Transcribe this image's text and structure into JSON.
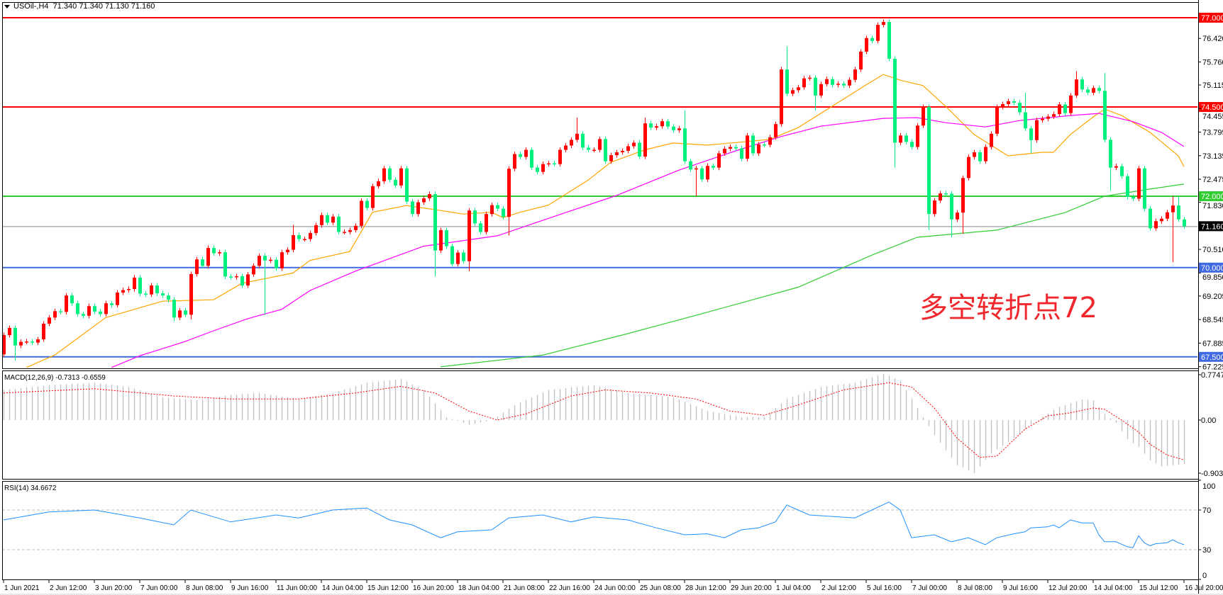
{
  "header": {
    "symbol": "USOil-,H4",
    "ohlc": "71.340 71.340 71.130 71.160"
  },
  "annotation": "多空转折点72",
  "price_axis": {
    "ticks": [
      "76.420",
      "75.760",
      "75.115",
      "74.455",
      "73.795",
      "73.135",
      "72.475",
      "71.830",
      "70.510",
      "69.850",
      "69.205",
      "68.545",
      "67.885",
      "67.225"
    ],
    "level_labels": [
      {
        "text": "77.000",
        "bg": "#ff0000",
        "fg": "#ffffff"
      },
      {
        "text": "74.500",
        "bg": "#ff0000",
        "fg": "#ffffff"
      },
      {
        "text": "72.000",
        "bg": "#32cd32",
        "fg": "#ffffff"
      },
      {
        "text": "71.160",
        "bg": "#000000",
        "fg": "#ffffff"
      },
      {
        "text": "70.000",
        "bg": "#4169e1",
        "fg": "#ffffff"
      },
      {
        "text": "67.500",
        "bg": "#4169e1",
        "fg": "#ffffff"
      }
    ]
  },
  "time_axis": [
    "1 Jun 2021",
    "2 Jun 12:00",
    "3 Jun 20:00",
    "7 Jun 00:00",
    "8 Jun 08:00",
    "9 Jun 16:00",
    "11 Jun 00:00",
    "14 Jun 04:00",
    "15 Jun 12:00",
    "16 Jun 20:00",
    "18 Jun 04:00",
    "21 Jun 08:00",
    "22 Jun 16:00",
    "24 Jun 00:00",
    "25 Jun 08:00",
    "28 Jun 12:00",
    "29 Jun 20:00",
    "1 Jul 04:00",
    "2 Jul 12:00",
    "5 Jul 16:00",
    "7 Jul 00:00",
    "8 Jul 08:00",
    "9 Jul 16:00",
    "12 Jul 20:00",
    "14 Jul 04:00",
    "15 Jul 12:00",
    "16 Jul 20:00"
  ],
  "macd": {
    "label": "MACD(12,26,9) -0.7313 -0.6559",
    "axis": [
      "0.7747",
      "0.00",
      "-0.9034"
    ],
    "main_color": "#c0c0c0",
    "signal_color": "#ff0000",
    "main": [
      [
        0,
        0.5
      ],
      [
        8,
        0.58
      ],
      [
        16,
        0.62
      ],
      [
        22,
        0.55
      ],
      [
        28,
        0.38
      ],
      [
        34,
        0.33
      ],
      [
        40,
        0.42
      ],
      [
        45,
        0.45
      ],
      [
        52,
        0.35
      ],
      [
        58,
        0.45
      ],
      [
        64,
        0.62
      ],
      [
        70,
        0.68
      ],
      [
        74,
        0.5
      ],
      [
        78,
        0.05
      ],
      [
        82,
        -0.08
      ],
      [
        86,
        0.0
      ],
      [
        90,
        0.25
      ],
      [
        96,
        0.5
      ],
      [
        104,
        0.58
      ],
      [
        110,
        0.45
      ],
      [
        118,
        0.38
      ],
      [
        124,
        0.15
      ],
      [
        130,
        0.05
      ],
      [
        134,
        0.05
      ],
      [
        138,
        0.35
      ],
      [
        144,
        0.55
      ],
      [
        150,
        0.62
      ],
      [
        155,
        0.77
      ],
      [
        158,
        0.65
      ],
      [
        161,
        0.2
      ],
      [
        164,
        -0.25
      ],
      [
        168,
        -0.75
      ],
      [
        171,
        -0.88
      ],
      [
        174,
        -0.55
      ],
      [
        178,
        -0.3
      ],
      [
        182,
        0.0
      ],
      [
        186,
        0.22
      ],
      [
        190,
        0.34
      ],
      [
        192,
        0.33
      ],
      [
        194,
        0.1
      ],
      [
        196,
        -0.05
      ],
      [
        198,
        -0.32
      ],
      [
        200,
        -0.45
      ],
      [
        202,
        -0.67
      ],
      [
        204,
        -0.77
      ],
      [
        208,
        -0.73
      ]
    ],
    "signal": [
      [
        0,
        0.45
      ],
      [
        16,
        0.52
      ],
      [
        30,
        0.4
      ],
      [
        40,
        0.35
      ],
      [
        52,
        0.35
      ],
      [
        62,
        0.45
      ],
      [
        70,
        0.56
      ],
      [
        76,
        0.45
      ],
      [
        82,
        0.15
      ],
      [
        87,
        0.0
      ],
      [
        92,
        0.1
      ],
      [
        100,
        0.4
      ],
      [
        106,
        0.5
      ],
      [
        114,
        0.45
      ],
      [
        122,
        0.35
      ],
      [
        128,
        0.15
      ],
      [
        134,
        0.08
      ],
      [
        140,
        0.25
      ],
      [
        148,
        0.5
      ],
      [
        156,
        0.62
      ],
      [
        160,
        0.55
      ],
      [
        164,
        0.2
      ],
      [
        168,
        -0.3
      ],
      [
        172,
        -0.62
      ],
      [
        175,
        -0.6
      ],
      [
        180,
        -0.15
      ],
      [
        184,
        0.07
      ],
      [
        188,
        0.12
      ],
      [
        192,
        0.2
      ],
      [
        194,
        0.18
      ],
      [
        197,
        0.0
      ],
      [
        200,
        -0.2
      ],
      [
        202,
        -0.4
      ],
      [
        205,
        -0.58
      ],
      [
        208,
        -0.66
      ]
    ]
  },
  "rsi": {
    "label": "RSI(14) 34.6672",
    "axis": [
      "100",
      "70",
      "30",
      "0"
    ],
    "levels": [
      70,
      30
    ],
    "color": "#1e90ff",
    "values": [
      [
        0,
        60
      ],
      [
        8,
        68
      ],
      [
        16,
        70
      ],
      [
        24,
        62
      ],
      [
        30,
        55
      ],
      [
        33,
        70
      ],
      [
        40,
        58
      ],
      [
        48,
        65
      ],
      [
        52,
        62
      ],
      [
        58,
        70
      ],
      [
        64,
        72
      ],
      [
        68,
        60
      ],
      [
        72,
        55
      ],
      [
        77,
        42
      ],
      [
        80,
        48
      ],
      [
        86,
        50
      ],
      [
        89,
        62
      ],
      [
        95,
        65
      ],
      [
        100,
        58
      ],
      [
        104,
        63
      ],
      [
        110,
        60
      ],
      [
        115,
        52
      ],
      [
        120,
        45
      ],
      [
        124,
        46
      ],
      [
        127,
        42
      ],
      [
        130,
        50
      ],
      [
        133,
        52
      ],
      [
        136,
        58
      ],
      [
        138,
        75
      ],
      [
        142,
        65
      ],
      [
        150,
        62
      ],
      [
        156,
        78
      ],
      [
        158,
        70
      ],
      [
        160,
        42
      ],
      [
        164,
        45
      ],
      [
        167,
        38
      ],
      [
        170,
        42
      ],
      [
        173,
        35
      ],
      [
        175,
        42
      ],
      [
        178,
        46
      ],
      [
        180,
        48
      ],
      [
        181,
        52
      ],
      [
        184,
        53
      ],
      [
        185,
        55
      ],
      [
        186,
        52
      ],
      [
        188,
        60
      ],
      [
        190,
        57
      ],
      [
        192,
        57
      ],
      [
        193,
        45
      ],
      [
        194,
        38
      ],
      [
        196,
        38
      ],
      [
        198,
        33
      ],
      [
        199,
        32
      ],
      [
        200,
        44
      ],
      [
        201,
        37
      ],
      [
        202,
        34
      ],
      [
        203,
        36
      ],
      [
        205,
        37
      ],
      [
        206,
        40
      ],
      [
        207,
        37
      ],
      [
        208,
        35
      ]
    ]
  },
  "chart_data": {
    "type": "candlestick",
    "symbol": "USOil-",
    "timeframe": "H4",
    "ylim": [
      67.225,
      77.44
    ],
    "up_color": "#ff0000",
    "down_color": "#00f080",
    "first_open": 67.57,
    "close": [
      68.11,
      68.31,
      67.82,
      67.92,
      67.93,
      67.9,
      67.99,
      68.43,
      68.6,
      68.78,
      68.76,
      69.22,
      69.0,
      68.7,
      68.65,
      68.92,
      68.77,
      68.7,
      69.0,
      68.95,
      69.3,
      69.37,
      69.4,
      69.72,
      69.27,
      69.25,
      69.5,
      69.28,
      69.22,
      69.1,
      68.6,
      68.8,
      68.68,
      69.82,
      70.23,
      70.05,
      70.55,
      70.4,
      70.43,
      69.75,
      69.73,
      69.76,
      69.5,
      69.81,
      70.05,
      70.33,
      70.2,
      70.22,
      69.98,
      70.43,
      70.5,
      70.91,
      70.8,
      70.8,
      70.97,
      71.19,
      71.47,
      71.26,
      71.43,
      71.0,
      71.0,
      71.05,
      71.17,
      71.87,
      71.67,
      72.28,
      72.42,
      72.78,
      72.46,
      72.3,
      72.78,
      71.85,
      71.5,
      71.83,
      71.94,
      72.06,
      70.48,
      71.05,
      70.6,
      70.1,
      70.42,
      70.18,
      71.6,
      71.24,
      71.0,
      71.5,
      71.75,
      71.65,
      71.42,
      72.77,
      73.18,
      73.1,
      73.3,
      72.8,
      72.68,
      72.9,
      72.92,
      72.9,
      73.3,
      73.42,
      73.58,
      73.75,
      73.36,
      73.3,
      73.3,
      73.6,
      72.98,
      73.15,
      73.23,
      73.27,
      73.4,
      73.5,
      73.11,
      74.04,
      73.92,
      73.96,
      74.1,
      73.95,
      73.85,
      73.9,
      72.98,
      72.75,
      72.78,
      72.47,
      72.85,
      72.8,
      73.2,
      73.33,
      73.38,
      73.34,
      73.05,
      73.7,
      73.2,
      73.45,
      73.44,
      73.65,
      74.02,
      75.55,
      74.87,
      74.97,
      75.05,
      75.3,
      75.32,
      74.82,
      75.14,
      75.28,
      75.12,
      75.15,
      75.1,
      75.26,
      75.55,
      76.05,
      76.43,
      76.35,
      76.8,
      76.88,
      75.85,
      73.5,
      73.7,
      73.52,
      73.38,
      73.98,
      74.5,
      71.5,
      71.88,
      72.08,
      72.07,
      71.35,
      71.54,
      72.51,
      73.1,
      73.23,
      72.98,
      73.38,
      73.75,
      74.5,
      74.58,
      74.66,
      74.62,
      74.35,
      73.9,
      73.57,
      74.13,
      74.17,
      74.23,
      74.3,
      74.57,
      74.33,
      74.82,
      75.27,
      74.99,
      74.9,
      75.03,
      74.95,
      73.58,
      72.8,
      72.84,
      72.56,
      71.98,
      71.93,
      72.78,
      71.65,
      71.1,
      71.3,
      71.37,
      71.55,
      71.74,
      71.35,
      71.16
    ],
    "notable_wicks": [
      {
        "bar": 2,
        "low": 67.4
      },
      {
        "bar": 30,
        "low": 68.5
      },
      {
        "bar": 33,
        "low": 68.55
      },
      {
        "bar": 46,
        "low": 68.67
      },
      {
        "bar": 51,
        "high": 71.2
      },
      {
        "bar": 76,
        "low": 69.75
      },
      {
        "bar": 82,
        "low": 69.9
      },
      {
        "bar": 89,
        "low": 70.9
      },
      {
        "bar": 101,
        "high": 74.2
      },
      {
        "bar": 113,
        "high": 74.2
      },
      {
        "bar": 120,
        "high": 74.4
      },
      {
        "bar": 122,
        "low": 72.0
      },
      {
        "bar": 138,
        "high": 76.2
      },
      {
        "bar": 143,
        "low": 74.4
      },
      {
        "bar": 157,
        "low": 72.8
      },
      {
        "bar": 163,
        "low": 71.05
      },
      {
        "bar": 167,
        "low": 70.85
      },
      {
        "bar": 169,
        "low": 70.95
      },
      {
        "bar": 180,
        "high": 74.9
      },
      {
        "bar": 181,
        "low": 73.2
      },
      {
        "bar": 189,
        "high": 75.5
      },
      {
        "bar": 194,
        "high": 75.45
      },
      {
        "bar": 195,
        "low": 72.15
      },
      {
        "bar": 206,
        "low": 70.15,
        "high": 72.0
      },
      {
        "bar": 207,
        "high": 72.0
      }
    ],
    "moving_averages": [
      {
        "color": "#ffa500",
        "points": [
          [
            4,
            67.2
          ],
          [
            9,
            67.55
          ],
          [
            18,
            68.6
          ],
          [
            28,
            69.06
          ],
          [
            37,
            69.1
          ],
          [
            42,
            69.56
          ],
          [
            51,
            69.85
          ],
          [
            54,
            70.2
          ],
          [
            61,
            70.45
          ],
          [
            65,
            71.55
          ],
          [
            71,
            71.74
          ],
          [
            77,
            71.6
          ],
          [
            81,
            71.5
          ],
          [
            86,
            71.55
          ],
          [
            88,
            71.4
          ],
          [
            91,
            71.55
          ],
          [
            96,
            71.75
          ],
          [
            99,
            72.05
          ],
          [
            103,
            72.45
          ],
          [
            107,
            72.95
          ],
          [
            113,
            73.3
          ],
          [
            118,
            73.49
          ],
          [
            124,
            73.43
          ],
          [
            135,
            73.59
          ],
          [
            140,
            73.92
          ],
          [
            146,
            74.52
          ],
          [
            152,
            75.12
          ],
          [
            155,
            75.41
          ],
          [
            158,
            75.25
          ],
          [
            162,
            75.1
          ],
          [
            166,
            74.52
          ],
          [
            171,
            73.73
          ],
          [
            177,
            73.13
          ],
          [
            183,
            73.23
          ],
          [
            185,
            73.23
          ],
          [
            188,
            73.73
          ],
          [
            192,
            74.22
          ],
          [
            194,
            74.44
          ],
          [
            197,
            74.26
          ],
          [
            202,
            73.79
          ],
          [
            207,
            73.13
          ],
          [
            208,
            72.83
          ]
        ]
      },
      {
        "color": "#ff00ff",
        "points": [
          [
            19,
            67.2
          ],
          [
            24,
            67.53
          ],
          [
            32,
            67.93
          ],
          [
            37,
            68.23
          ],
          [
            43,
            68.57
          ],
          [
            49,
            68.83
          ],
          [
            54,
            69.36
          ],
          [
            62,
            69.9
          ],
          [
            74,
            70.6
          ],
          [
            87,
            70.89
          ],
          [
            99,
            71.54
          ],
          [
            108,
            72.02
          ],
          [
            119,
            72.73
          ],
          [
            129,
            73.27
          ],
          [
            137,
            73.67
          ],
          [
            144,
            73.96
          ],
          [
            155,
            74.18
          ],
          [
            161,
            74.2
          ],
          [
            166,
            74.06
          ],
          [
            173,
            73.94
          ],
          [
            179,
            74.12
          ],
          [
            188,
            74.26
          ],
          [
            193,
            74.32
          ],
          [
            199,
            74.09
          ],
          [
            204,
            73.79
          ],
          [
            208,
            73.39
          ]
        ]
      },
      {
        "color": "#32cd32",
        "points": [
          [
            77,
            67.22
          ],
          [
            95,
            67.55
          ],
          [
            110,
            68.15
          ],
          [
            124,
            68.75
          ],
          [
            140,
            69.45
          ],
          [
            153,
            70.35
          ],
          [
            161,
            70.85
          ],
          [
            175,
            71.05
          ],
          [
            187,
            71.54
          ],
          [
            194,
            72.0
          ],
          [
            202,
            72.2
          ],
          [
            208,
            72.34
          ]
        ]
      }
    ],
    "levels": [
      {
        "price": 77.0,
        "color": "#ff0000"
      },
      {
        "price": 74.5,
        "color": "#ff0000"
      },
      {
        "price": 72.0,
        "color": "#32cd32"
      },
      {
        "price": 70.0,
        "color": "#4169e1"
      },
      {
        "price": 67.5,
        "color": "#4169e1"
      }
    ],
    "bid": {
      "price": 71.16,
      "color": "#808890"
    }
  }
}
